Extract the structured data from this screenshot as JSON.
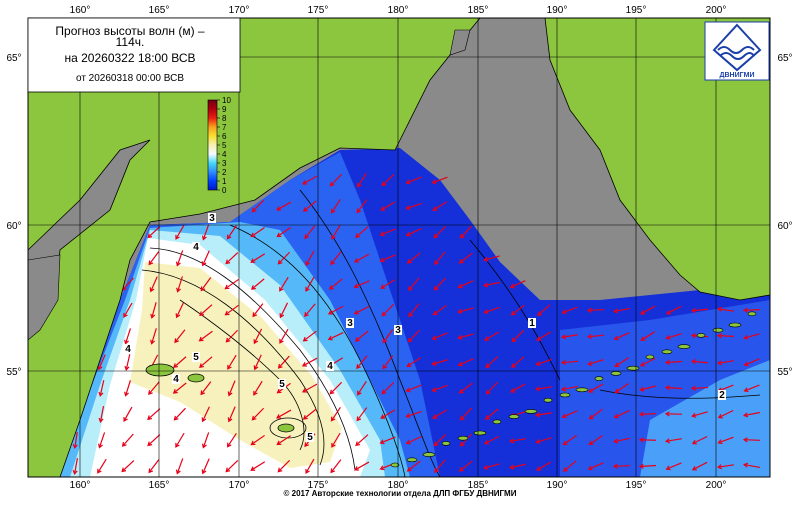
{
  "header": {
    "title": "Прогноз высоты волн (м) –",
    "lead_time": "114ч.",
    "valid": "на 20260322 18:00 ВСВ",
    "issued": "от 20260318 00:00 ВСВ"
  },
  "colorbar": {
    "ticks": [
      0,
      1,
      2,
      3,
      4,
      5,
      6,
      7,
      8,
      9,
      10
    ]
  },
  "longitudes": [
    "160°",
    "165°",
    "170°",
    "175°",
    "180°",
    "185°",
    "190°",
    "195°",
    "200°"
  ],
  "latitudes": [
    "65°",
    "60°",
    "55°"
  ],
  "contour_labels": [
    "3",
    "4",
    "4",
    "5",
    "4",
    "5",
    "4",
    "3",
    "3",
    "1",
    "2",
    "5"
  ],
  "logo": "ДВНИГМИ",
  "footer": "© 2017 Авторские технологии отдела ДЛП ФГБУ ДВНИГМИ"
}
